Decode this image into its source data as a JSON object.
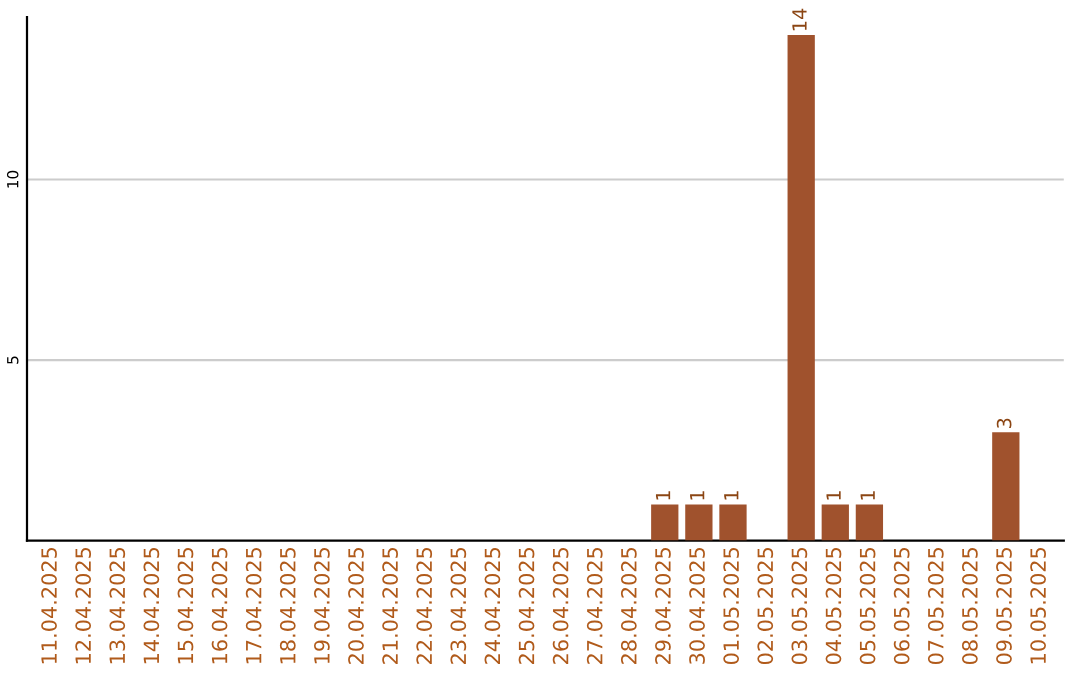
{
  "chart_data": {
    "type": "bar",
    "categories": [
      "11.04.2025",
      "12.04.2025",
      "13.04.2025",
      "14.04.2025",
      "15.04.2025",
      "16.04.2025",
      "17.04.2025",
      "18.04.2025",
      "19.04.2025",
      "20.04.2025",
      "21.04.2025",
      "22.04.2025",
      "23.04.2025",
      "24.04.2025",
      "25.04.2025",
      "26.04.2025",
      "27.04.2025",
      "28.04.2025",
      "29.04.2025",
      "30.04.2025",
      "01.05.2025",
      "02.05.2025",
      "03.05.2025",
      "04.05.2025",
      "05.05.2025",
      "06.05.2025",
      "07.05.2025",
      "08.05.2025",
      "09.05.2025",
      "10.05.2025"
    ],
    "values": [
      0,
      0,
      0,
      0,
      0,
      0,
      0,
      0,
      0,
      0,
      0,
      0,
      0,
      0,
      0,
      0,
      0,
      0,
      1,
      1,
      1,
      0,
      14,
      1,
      1,
      0,
      0,
      0,
      3,
      0
    ],
    "value_labels": [
      null,
      null,
      null,
      null,
      null,
      null,
      null,
      null,
      null,
      null,
      null,
      null,
      null,
      null,
      null,
      null,
      null,
      null,
      "1",
      "1",
      "1",
      null,
      "14",
      "1",
      "1",
      null,
      null,
      null,
      "3",
      null
    ],
    "color": "#a0522d",
    "ylim": [
      0,
      14.5
    ],
    "yticks": [
      5,
      10
    ],
    "grid": "y"
  }
}
